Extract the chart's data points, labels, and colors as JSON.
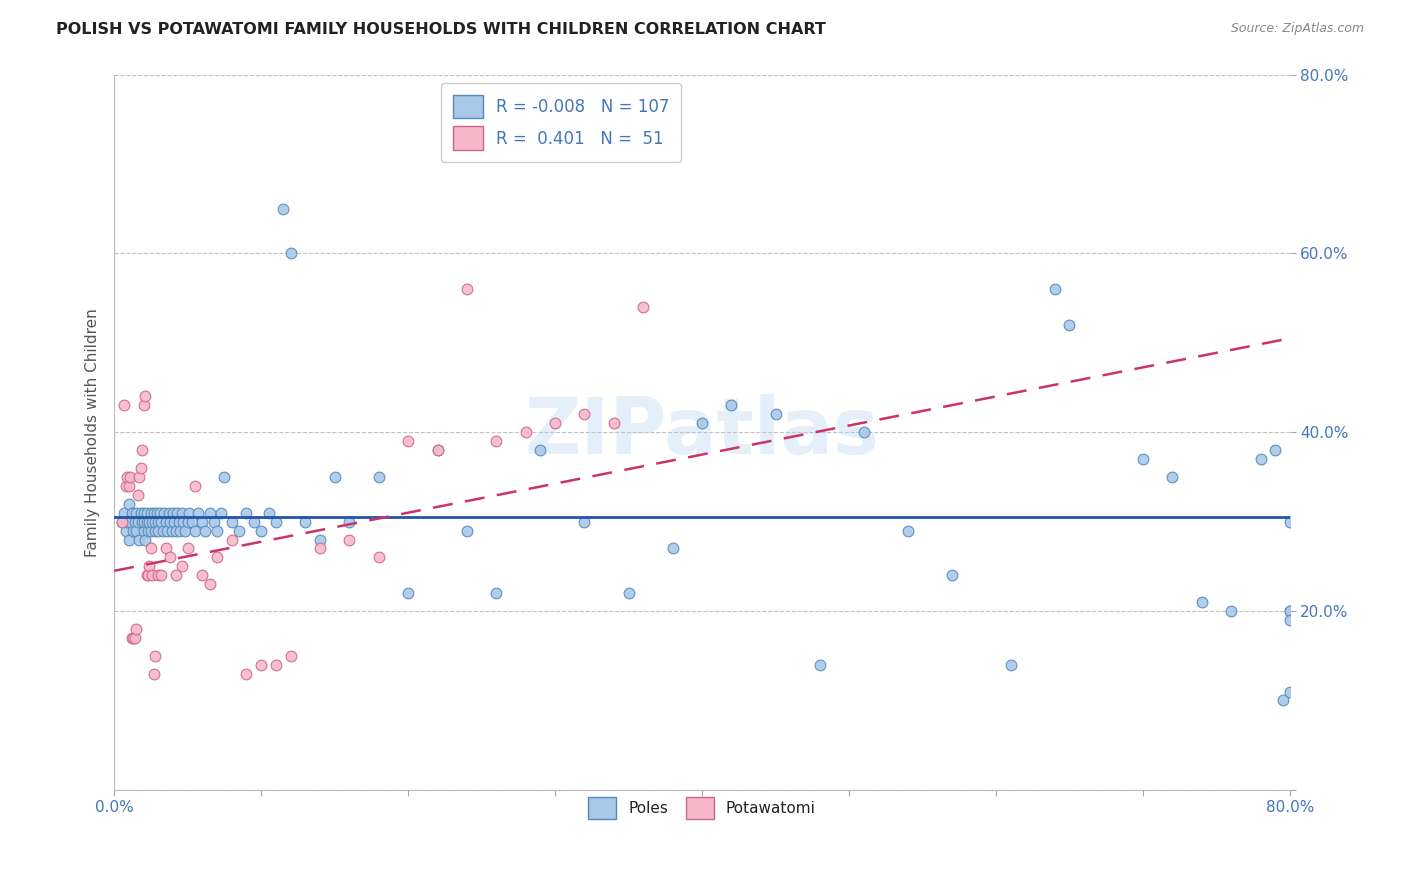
{
  "title": "POLISH VS POTAWATOMI FAMILY HOUSEHOLDS WITH CHILDREN CORRELATION CHART",
  "source": "Source: ZipAtlas.com",
  "ylabel": "Family Households with Children",
  "watermark": "ZIPatlas",
  "blue_R": -0.008,
  "blue_N": 107,
  "pink_R": 0.401,
  "pink_N": 51,
  "blue_color": "#a8c8e8",
  "pink_color": "#f8b8cc",
  "blue_edge_color": "#5588bb",
  "pink_edge_color": "#cc6688",
  "blue_line_color": "#2255aa",
  "pink_line_color": "#cc3366",
  "xlim": [
    0.0,
    0.8
  ],
  "ylim": [
    0.0,
    0.8
  ],
  "xtick_positions": [
    0.0,
    0.1,
    0.2,
    0.3,
    0.4,
    0.5,
    0.6,
    0.7,
    0.8
  ],
  "ytick_positions": [
    0.0,
    0.2,
    0.4,
    0.6,
    0.8
  ],
  "blue_x": [
    0.005,
    0.007,
    0.008,
    0.009,
    0.01,
    0.01,
    0.011,
    0.012,
    0.013,
    0.014,
    0.015,
    0.015,
    0.016,
    0.017,
    0.018,
    0.019,
    0.02,
    0.02,
    0.02,
    0.021,
    0.022,
    0.022,
    0.023,
    0.024,
    0.025,
    0.025,
    0.026,
    0.027,
    0.028,
    0.028,
    0.029,
    0.03,
    0.03,
    0.031,
    0.032,
    0.033,
    0.034,
    0.035,
    0.036,
    0.037,
    0.038,
    0.039,
    0.04,
    0.041,
    0.042,
    0.043,
    0.044,
    0.045,
    0.046,
    0.047,
    0.048,
    0.05,
    0.051,
    0.053,
    0.055,
    0.057,
    0.06,
    0.062,
    0.065,
    0.068,
    0.07,
    0.073,
    0.075,
    0.08,
    0.085,
    0.09,
    0.095,
    0.1,
    0.105,
    0.11,
    0.115,
    0.12,
    0.13,
    0.14,
    0.15,
    0.16,
    0.18,
    0.2,
    0.22,
    0.24,
    0.26,
    0.29,
    0.32,
    0.35,
    0.38,
    0.4,
    0.42,
    0.45,
    0.48,
    0.51,
    0.54,
    0.57,
    0.61,
    0.64,
    0.65,
    0.7,
    0.72,
    0.74,
    0.76,
    0.78,
    0.79,
    0.795,
    0.8,
    0.8,
    0.8,
    0.8,
    0.8
  ],
  "blue_y": [
    0.3,
    0.31,
    0.29,
    0.3,
    0.32,
    0.28,
    0.3,
    0.31,
    0.29,
    0.3,
    0.31,
    0.29,
    0.3,
    0.28,
    0.31,
    0.3,
    0.29,
    0.31,
    0.3,
    0.28,
    0.3,
    0.31,
    0.29,
    0.3,
    0.31,
    0.29,
    0.3,
    0.31,
    0.29,
    0.3,
    0.31,
    0.3,
    0.29,
    0.31,
    0.3,
    0.29,
    0.31,
    0.3,
    0.29,
    0.31,
    0.3,
    0.29,
    0.31,
    0.3,
    0.29,
    0.31,
    0.3,
    0.29,
    0.31,
    0.3,
    0.29,
    0.3,
    0.31,
    0.3,
    0.29,
    0.31,
    0.3,
    0.29,
    0.31,
    0.3,
    0.29,
    0.31,
    0.35,
    0.3,
    0.29,
    0.31,
    0.3,
    0.29,
    0.31,
    0.3,
    0.65,
    0.6,
    0.3,
    0.28,
    0.35,
    0.3,
    0.35,
    0.22,
    0.38,
    0.29,
    0.22,
    0.38,
    0.3,
    0.22,
    0.27,
    0.41,
    0.43,
    0.42,
    0.14,
    0.4,
    0.29,
    0.24,
    0.14,
    0.56,
    0.52,
    0.37,
    0.35,
    0.21,
    0.2,
    0.37,
    0.38,
    0.1,
    0.3,
    0.2,
    0.2,
    0.19,
    0.11
  ],
  "pink_x": [
    0.005,
    0.007,
    0.008,
    0.009,
    0.01,
    0.011,
    0.012,
    0.013,
    0.014,
    0.015,
    0.016,
    0.017,
    0.018,
    0.019,
    0.02,
    0.021,
    0.022,
    0.023,
    0.024,
    0.025,
    0.026,
    0.027,
    0.028,
    0.03,
    0.032,
    0.035,
    0.038,
    0.042,
    0.046,
    0.05,
    0.055,
    0.06,
    0.065,
    0.07,
    0.08,
    0.09,
    0.1,
    0.11,
    0.12,
    0.14,
    0.16,
    0.18,
    0.2,
    0.22,
    0.24,
    0.26,
    0.28,
    0.3,
    0.32,
    0.34,
    0.36
  ],
  "pink_y": [
    0.3,
    0.43,
    0.34,
    0.35,
    0.34,
    0.35,
    0.17,
    0.17,
    0.17,
    0.18,
    0.33,
    0.35,
    0.36,
    0.38,
    0.43,
    0.44,
    0.24,
    0.24,
    0.25,
    0.27,
    0.24,
    0.13,
    0.15,
    0.24,
    0.24,
    0.27,
    0.26,
    0.24,
    0.25,
    0.27,
    0.34,
    0.24,
    0.23,
    0.26,
    0.28,
    0.13,
    0.14,
    0.14,
    0.15,
    0.27,
    0.28,
    0.26,
    0.39,
    0.38,
    0.56,
    0.39,
    0.4,
    0.41,
    0.42,
    0.41,
    0.54
  ],
  "blue_line_y_at_0": 0.305,
  "blue_line_y_at_80": 0.305,
  "pink_line_y_at_0": 0.245,
  "pink_line_y_at_80": 0.505
}
